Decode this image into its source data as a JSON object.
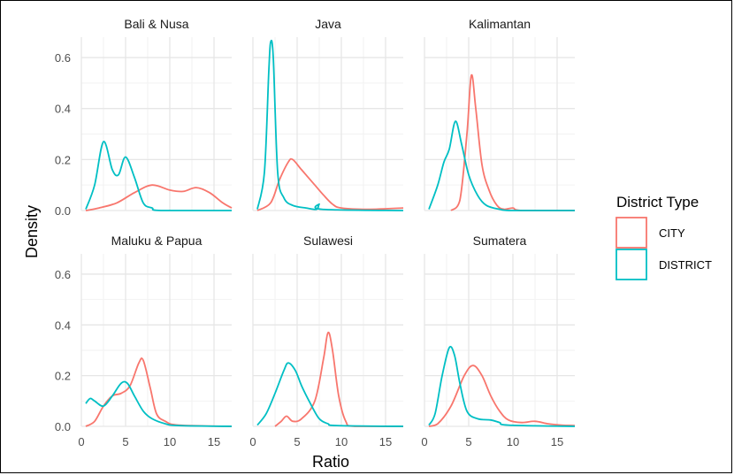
{
  "chart_data": {
    "type": "line",
    "subtype": "density facets",
    "xlabel": "Ratio",
    "ylabel": "Density",
    "xlim": [
      0,
      17
    ],
    "ylim": [
      0,
      0.68
    ],
    "x_ticks": [
      0,
      5,
      10,
      15
    ],
    "y_ticks": [
      "0.0",
      "0.2",
      "0.4",
      "0.6"
    ],
    "y_tick_values": [
      0,
      0.2,
      0.4,
      0.6
    ],
    "grid": true,
    "legend": {
      "title": "District Type",
      "placement": "right",
      "entries": [
        {
          "name": "CITY",
          "color": "#F8766D"
        },
        {
          "name": "DISTRICT",
          "color": "#00BFC4"
        }
      ]
    },
    "panels": [
      {
        "title": "Bali & Nusa",
        "series": [
          {
            "name": "CITY",
            "color": "#F8766D",
            "points": [
              [
                0.5,
                0
              ],
              [
                2,
                0.01
              ],
              [
                4,
                0.03
              ],
              [
                6,
                0.07
              ],
              [
                8,
                0.1
              ],
              [
                10,
                0.08
              ],
              [
                11.5,
                0.075
              ],
              [
                13,
                0.09
              ],
              [
                14.5,
                0.07
              ],
              [
                16,
                0.03
              ],
              [
                17,
                0.01
              ]
            ]
          },
          {
            "name": "DISTRICT",
            "color": "#00BFC4",
            "points": [
              [
                0.5,
                0.005
              ],
              [
                1.5,
                0.1
              ],
              [
                2.5,
                0.27
              ],
              [
                3.5,
                0.16
              ],
              [
                4.2,
                0.14
              ],
              [
                5,
                0.21
              ],
              [
                6,
                0.13
              ],
              [
                7,
                0.03
              ],
              [
                8,
                0.01
              ],
              [
                9,
                0
              ],
              [
                17,
                0
              ]
            ]
          }
        ]
      },
      {
        "title": "Java",
        "series": [
          {
            "name": "CITY",
            "color": "#F8766D",
            "points": [
              [
                0.5,
                0
              ],
              [
                2,
                0.03
              ],
              [
                3,
                0.12
              ],
              [
                4,
                0.19
              ],
              [
                4.5,
                0.2
              ],
              [
                5.5,
                0.16
              ],
              [
                7,
                0.1
              ],
              [
                8,
                0.06
              ],
              [
                9,
                0.025
              ],
              [
                10,
                0.01
              ],
              [
                13,
                0.005
              ],
              [
                17,
                0.01
              ]
            ]
          },
          {
            "name": "DISTRICT",
            "color": "#00BFC4",
            "points": [
              [
                0.5,
                0.005
              ],
              [
                1.3,
                0.15
              ],
              [
                1.8,
                0.55
              ],
              [
                2,
                0.66
              ],
              [
                2.3,
                0.6
              ],
              [
                2.8,
                0.15
              ],
              [
                3.5,
                0.05
              ],
              [
                4.5,
                0.02
              ],
              [
                6,
                0.01
              ],
              [
                7.2,
                0.005
              ],
              [
                7.5,
                0.025
              ],
              [
                7.8,
                0.005
              ],
              [
                17,
                0
              ]
            ]
          }
        ]
      },
      {
        "title": "Kalimantan",
        "series": [
          {
            "name": "CITY",
            "color": "#F8766D",
            "points": [
              [
                3,
                0
              ],
              [
                4,
                0.04
              ],
              [
                4.8,
                0.3
              ],
              [
                5.3,
                0.53
              ],
              [
                5.8,
                0.4
              ],
              [
                6.5,
                0.18
              ],
              [
                7.3,
                0.08
              ],
              [
                8.2,
                0.02
              ],
              [
                9,
                0.005
              ],
              [
                10,
                0.01
              ],
              [
                11,
                0
              ],
              [
                17,
                0
              ]
            ]
          },
          {
            "name": "DISTRICT",
            "color": "#00BFC4",
            "points": [
              [
                0.5,
                0.005
              ],
              [
                1.5,
                0.1
              ],
              [
                2.2,
                0.19
              ],
              [
                2.8,
                0.24
              ],
              [
                3.5,
                0.35
              ],
              [
                4.2,
                0.26
              ],
              [
                5,
                0.14
              ],
              [
                6,
                0.06
              ],
              [
                7,
                0.02
              ],
              [
                8.5,
                0.005
              ],
              [
                10,
                0
              ],
              [
                17,
                0
              ]
            ]
          }
        ]
      },
      {
        "title": "Maluku & Papua",
        "series": [
          {
            "name": "CITY",
            "color": "#F8766D",
            "points": [
              [
                0.5,
                0
              ],
              [
                1.5,
                0.02
              ],
              [
                2.5,
                0.08
              ],
              [
                3.5,
                0.12
              ],
              [
                4.5,
                0.13
              ],
              [
                5.5,
                0.16
              ],
              [
                6.5,
                0.25
              ],
              [
                7,
                0.26
              ],
              [
                7.8,
                0.15
              ],
              [
                8.5,
                0.05
              ],
              [
                9.5,
                0.02
              ],
              [
                11,
                0.005
              ],
              [
                17,
                0
              ]
            ]
          },
          {
            "name": "DISTRICT",
            "color": "#00BFC4",
            "points": [
              [
                0.5,
                0.09
              ],
              [
                1,
                0.11
              ],
              [
                1.5,
                0.1
              ],
              [
                2.5,
                0.08
              ],
              [
                3.5,
                0.12
              ],
              [
                4.5,
                0.17
              ],
              [
                5.2,
                0.17
              ],
              [
                6,
                0.12
              ],
              [
                7,
                0.06
              ],
              [
                8,
                0.03
              ],
              [
                9.5,
                0.01
              ],
              [
                11,
                0.003
              ],
              [
                17,
                0
              ]
            ]
          }
        ]
      },
      {
        "title": "Sulawesi",
        "series": [
          {
            "name": "CITY",
            "color": "#F8766D",
            "points": [
              [
                2.5,
                0
              ],
              [
                3.2,
                0.02
              ],
              [
                3.8,
                0.04
              ],
              [
                4.5,
                0.02
              ],
              [
                5.5,
                0.03
              ],
              [
                7,
                0.1
              ],
              [
                8,
                0.27
              ],
              [
                8.5,
                0.37
              ],
              [
                9,
                0.3
              ],
              [
                9.7,
                0.12
              ],
              [
                10.5,
                0.02
              ],
              [
                11.5,
                0
              ],
              [
                17,
                0
              ]
            ]
          },
          {
            "name": "DISTRICT",
            "color": "#00BFC4",
            "points": [
              [
                0.5,
                0.005
              ],
              [
                1.5,
                0.05
              ],
              [
                2.5,
                0.13
              ],
              [
                3.5,
                0.22
              ],
              [
                4,
                0.25
              ],
              [
                4.8,
                0.22
              ],
              [
                5.5,
                0.16
              ],
              [
                6.5,
                0.09
              ],
              [
                7.5,
                0.03
              ],
              [
                8.5,
                0.01
              ],
              [
                9.5,
                0.003
              ],
              [
                17,
                0
              ]
            ]
          }
        ]
      },
      {
        "title": "Sumatera",
        "series": [
          {
            "name": "CITY",
            "color": "#F8766D",
            "points": [
              [
                0.5,
                0
              ],
              [
                1.5,
                0.01
              ],
              [
                3,
                0.08
              ],
              [
                4.5,
                0.2
              ],
              [
                5.5,
                0.24
              ],
              [
                6.5,
                0.2
              ],
              [
                7.5,
                0.12
              ],
              [
                8.5,
                0.06
              ],
              [
                9.5,
                0.025
              ],
              [
                11,
                0.015
              ],
              [
                12.5,
                0.02
              ],
              [
                14,
                0.01
              ],
              [
                15.5,
                0.005
              ],
              [
                17,
                0.003
              ]
            ]
          },
          {
            "name": "DISTRICT",
            "color": "#00BFC4",
            "points": [
              [
                0.5,
                0.005
              ],
              [
                1.2,
                0.05
              ],
              [
                2,
                0.2
              ],
              [
                2.8,
                0.31
              ],
              [
                3.4,
                0.28
              ],
              [
                4,
                0.17
              ],
              [
                4.8,
                0.06
              ],
              [
                6,
                0.03
              ],
              [
                7.5,
                0.025
              ],
              [
                8.5,
                0.015
              ],
              [
                9.5,
                0.005
              ],
              [
                17,
                0
              ]
            ]
          }
        ]
      }
    ]
  }
}
